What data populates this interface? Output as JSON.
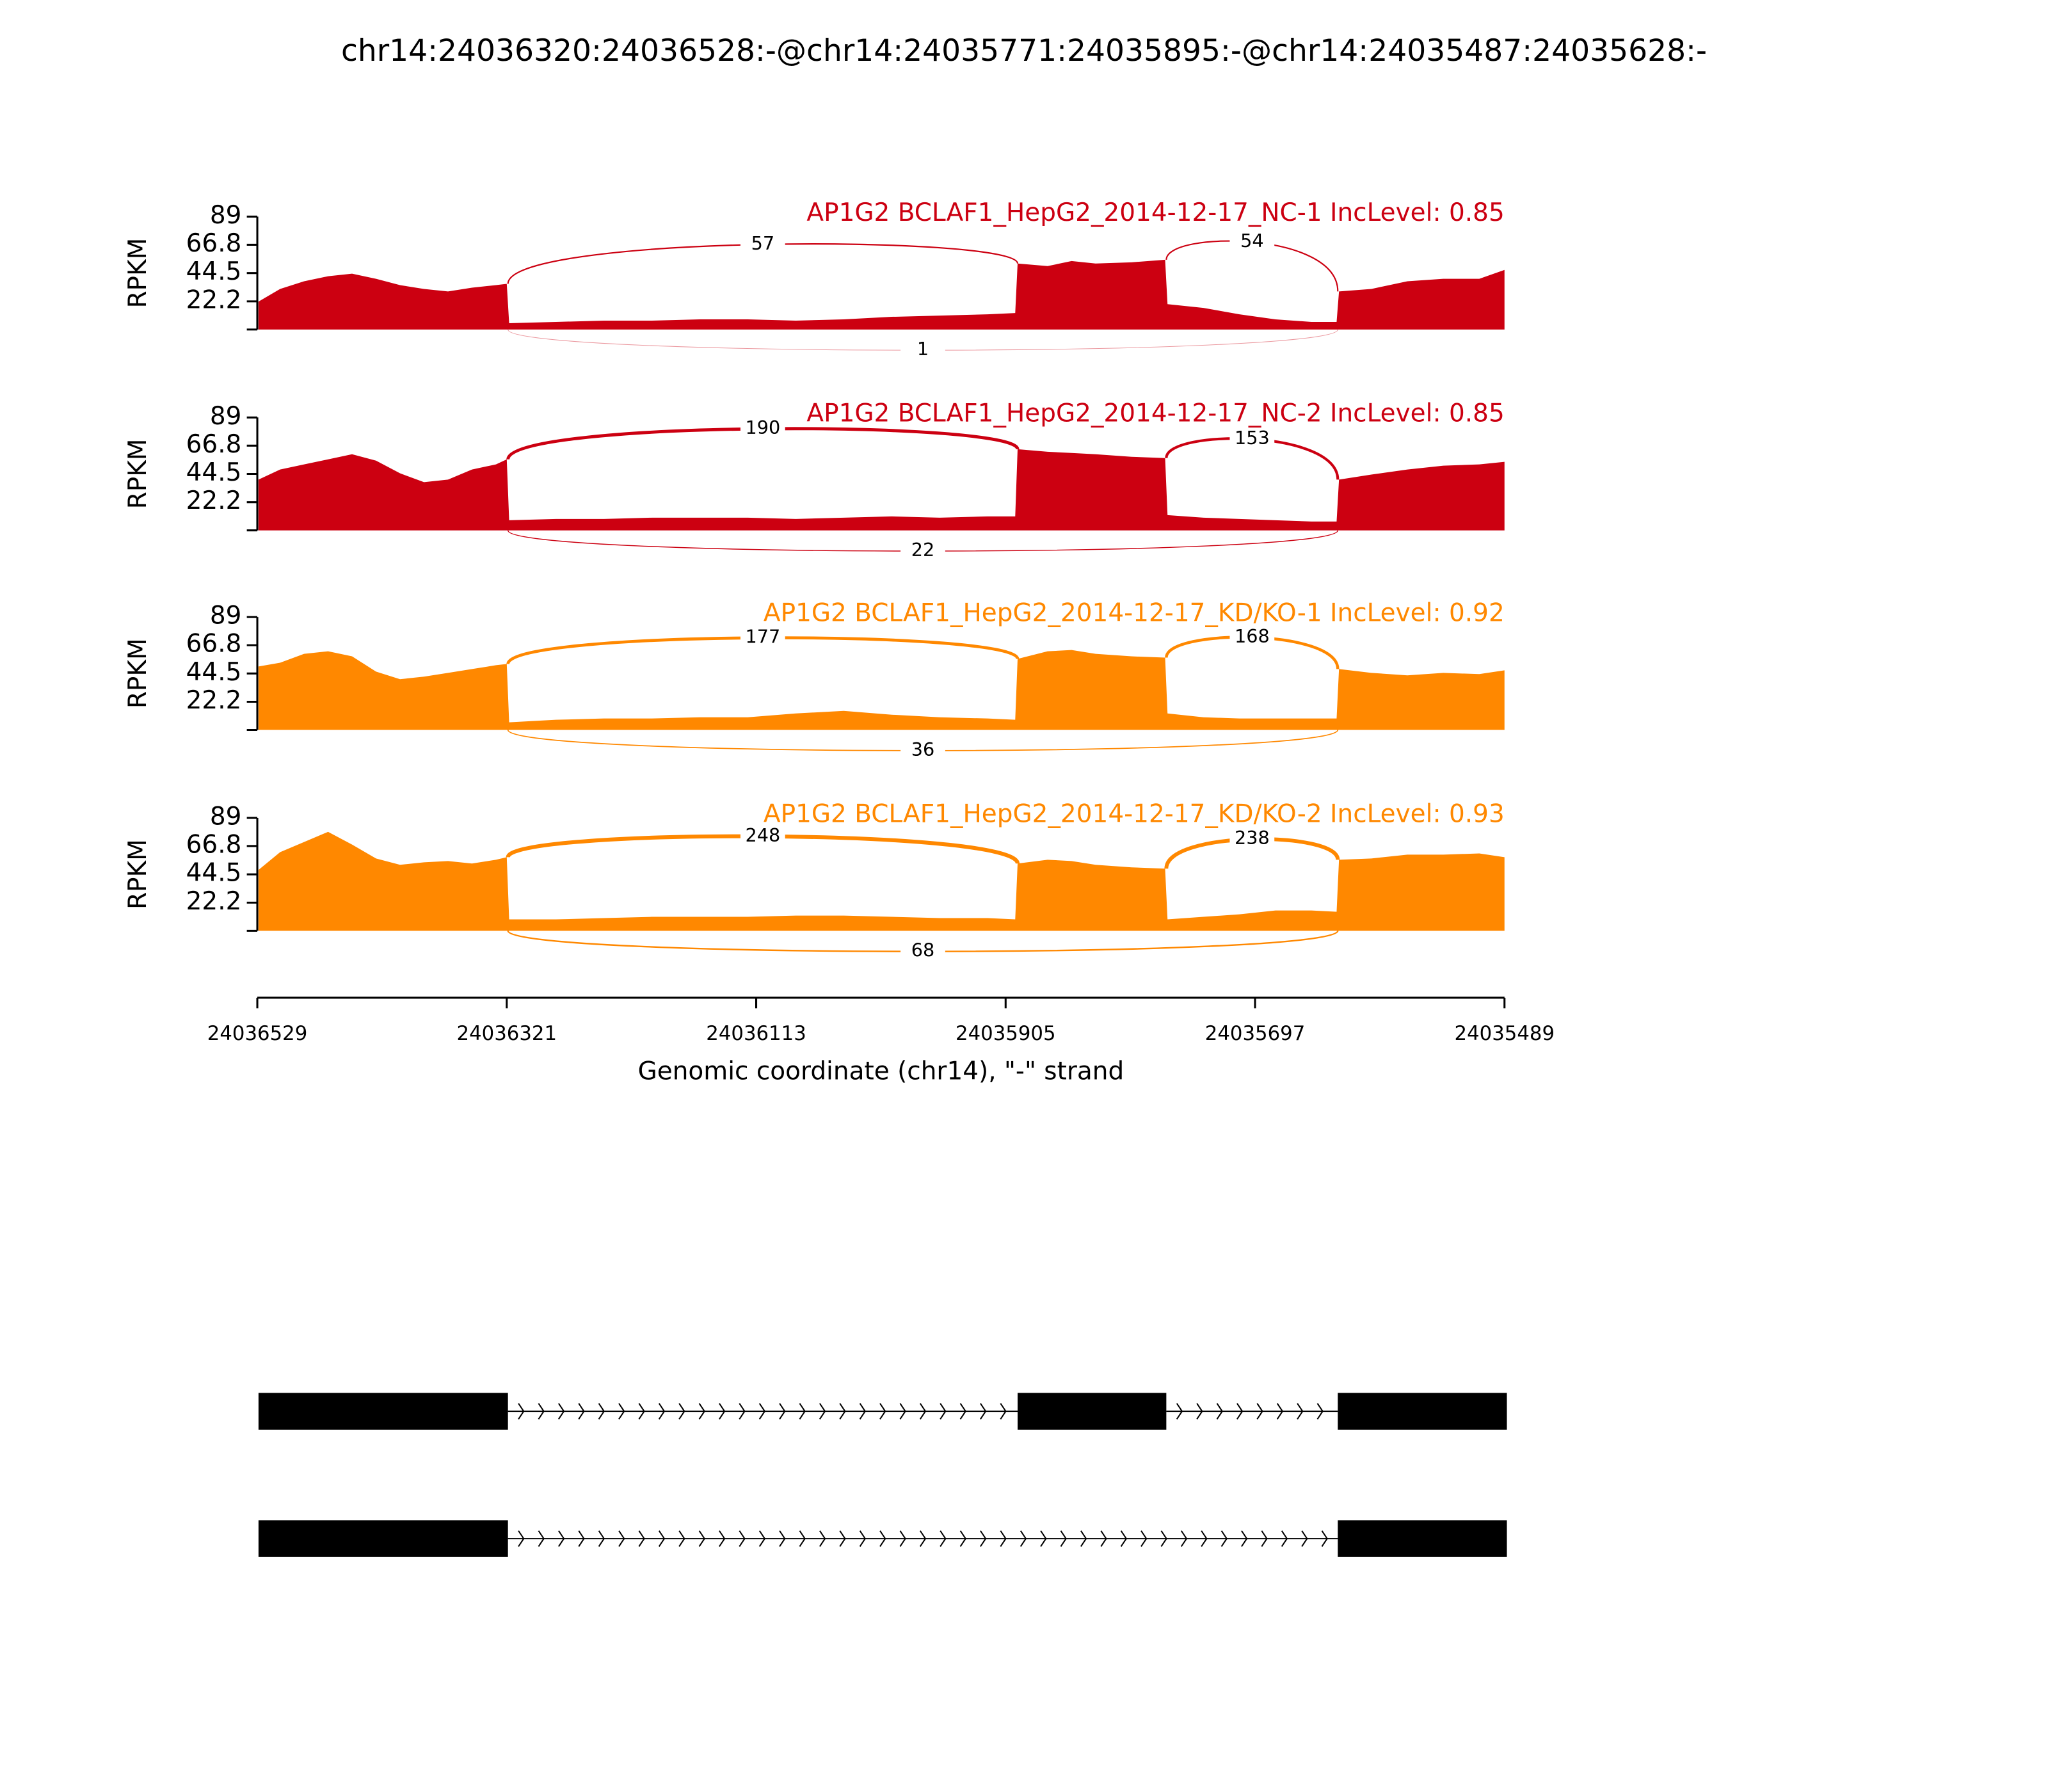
{
  "chart_data": {
    "type": "sashimi",
    "title": "chr14:24036320:24036528:-@chr14:24035771:24035895:-@chr14:24035487:24035628:-",
    "ylabel": "RPKM",
    "xlabel": "Genomic coordinate (chr14), \"-\" strand",
    "ylim": [
      0,
      89
    ],
    "yticks": [
      22.2,
      44.5,
      66.8,
      89
    ],
    "xlim": [
      24036529,
      24035489
    ],
    "xticks": [
      24036529,
      24036321,
      24036113,
      24035905,
      24035697,
      24035489
    ],
    "x": [
      24036528,
      24036510,
      24036490,
      24036470,
      24036450,
      24036430,
      24036410,
      24036390,
      24036370,
      24036350,
      24036330,
      24036321,
      24036319,
      24036280,
      24036240,
      24036200,
      24036160,
      24036120,
      24036080,
      24036040,
      24036000,
      24035960,
      24035920,
      24035897,
      24035895,
      24035870,
      24035850,
      24035830,
      24035800,
      24035772,
      24035770,
      24035740,
      24035710,
      24035680,
      24035650,
      24035629,
      24035627,
      24035600,
      24035570,
      24035540,
      24035510,
      24035489
    ],
    "junctions": [
      {
        "start": 24036320,
        "end": 24035895,
        "side": "above"
      },
      {
        "start": 24035771,
        "end": 24035628,
        "side": "above"
      },
      {
        "start": 24036320,
        "end": 24035628,
        "side": "below"
      }
    ],
    "series": [
      {
        "name": "AP1G2 BCLAF1_HepG2_2014-12-17_NC-1 IncLevel: 0.85",
        "color": "#cc0011",
        "values": [
          22,
          32,
          38,
          42,
          44,
          40,
          35,
          32,
          30,
          33,
          35,
          36,
          5,
          6,
          7,
          7,
          8,
          8,
          7,
          8,
          10,
          11,
          12,
          13,
          52,
          50,
          54,
          52,
          53,
          55,
          20,
          17,
          12,
          8,
          6,
          6,
          30,
          32,
          38,
          40,
          40,
          47
        ],
        "junction_counts": [
          57,
          54,
          1
        ]
      },
      {
        "name": "AP1G2 BCLAF1_HepG2_2014-12-17_NC-2 IncLevel: 0.85",
        "color": "#cc0011",
        "values": [
          40,
          48,
          52,
          56,
          60,
          55,
          45,
          38,
          40,
          48,
          52,
          56,
          8,
          9,
          9,
          10,
          10,
          10,
          9,
          10,
          11,
          10,
          11,
          11,
          64,
          62,
          61,
          60,
          58,
          57,
          12,
          10,
          9,
          8,
          7,
          7,
          40,
          44,
          48,
          51,
          52,
          54
        ],
        "junction_counts": [
          190,
          153,
          22
        ]
      },
      {
        "name": "AP1G2 BCLAF1_HepG2_2014-12-17_KD/KO-1 IncLevel: 0.92",
        "color": "#ff8800",
        "values": [
          50,
          53,
          60,
          62,
          58,
          46,
          40,
          42,
          45,
          48,
          51,
          52,
          6,
          8,
          9,
          9,
          10,
          10,
          13,
          15,
          12,
          10,
          9,
          8,
          56,
          62,
          63,
          60,
          58,
          57,
          13,
          10,
          9,
          9,
          9,
          9,
          48,
          45,
          43,
          45,
          44,
          47
        ],
        "junction_counts": [
          177,
          168,
          36
        ]
      },
      {
        "name": "AP1G2 BCLAF1_HepG2_2014-12-17_KD/KO-2 IncLevel: 0.93",
        "color": "#ff8800",
        "values": [
          48,
          62,
          70,
          78,
          68,
          57,
          52,
          54,
          55,
          53,
          56,
          58,
          9,
          9,
          10,
          11,
          11,
          11,
          12,
          12,
          11,
          10,
          10,
          9,
          53,
          56,
          55,
          52,
          50,
          49,
          9,
          11,
          13,
          16,
          16,
          15,
          56,
          57,
          60,
          60,
          61,
          58
        ],
        "junction_counts": [
          248,
          238,
          68
        ]
      }
    ],
    "isoforms": [
      {
        "exons": [
          [
            24036528,
            24036320
          ],
          [
            24035895,
            24035771
          ],
          [
            24035628,
            24035487
          ]
        ]
      },
      {
        "exons": [
          [
            24036528,
            24036320
          ],
          [
            24035628,
            24035487
          ]
        ]
      }
    ]
  }
}
